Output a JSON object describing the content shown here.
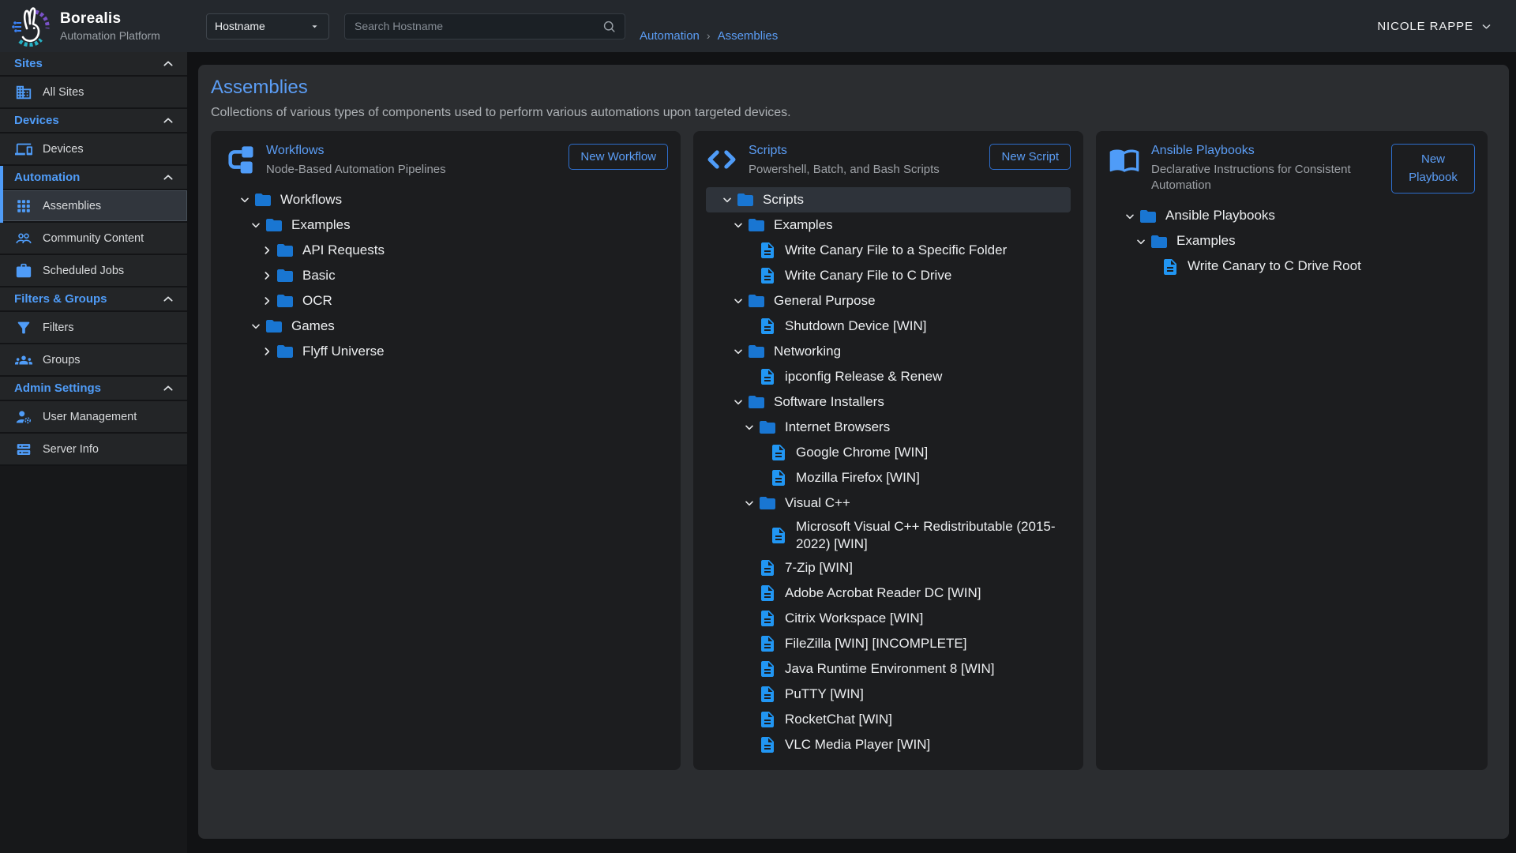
{
  "topbar": {
    "brand": {
      "name": "Borealis",
      "subtitle": "Automation Platform",
      "logo_icon": "rabbit-logo-icon"
    },
    "hostname_select": {
      "value": "Hostname",
      "icon": "chevron-down-icon"
    },
    "search": {
      "placeholder": "Search Hostname",
      "icon": "search-icon"
    },
    "breadcrumb": {
      "items": [
        {
          "label": "Automation"
        },
        {
          "label": "Assemblies"
        }
      ],
      "separator": "›"
    },
    "user": {
      "name": "NICOLE RAPPE",
      "icon": "chevron-down-icon"
    }
  },
  "sidebar": {
    "sections": [
      {
        "label": "Sites",
        "active": false,
        "items": [
          {
            "label": "All Sites",
            "icon": "building-icon",
            "selected": false
          }
        ]
      },
      {
        "label": "Devices",
        "active": false,
        "items": [
          {
            "label": "Devices",
            "icon": "devices-icon",
            "selected": false
          }
        ]
      },
      {
        "label": "Automation",
        "active": true,
        "items": [
          {
            "label": "Assemblies",
            "icon": "grid-icon",
            "selected": true
          },
          {
            "label": "Community Content",
            "icon": "people-icon",
            "selected": false
          },
          {
            "label": "Scheduled Jobs",
            "icon": "briefcase-icon",
            "selected": false
          }
        ]
      },
      {
        "label": "Filters & Groups",
        "active": false,
        "items": [
          {
            "label": "Filters",
            "icon": "filter-icon",
            "selected": false
          },
          {
            "label": "Groups",
            "icon": "groups-icon",
            "selected": false
          }
        ]
      },
      {
        "label": "Admin Settings",
        "active": false,
        "items": [
          {
            "label": "User Management",
            "icon": "user-gear-icon",
            "selected": false
          },
          {
            "label": "Server Info",
            "icon": "server-icon",
            "selected": false
          }
        ]
      }
    ]
  },
  "page": {
    "title": "Assemblies",
    "description": "Collections of various types of components used to perform various automations upon targeted devices."
  },
  "cards": [
    {
      "title": "Workflows",
      "subtitle": "Node-Based Automation Pipelines",
      "button": "New Workflow",
      "icon": "workflow-icon",
      "tree": [
        {
          "level": 0,
          "type": "folder",
          "expanded": true,
          "selected": false,
          "label": "Workflows"
        },
        {
          "level": 1,
          "type": "folder",
          "expanded": true,
          "selected": false,
          "label": "Examples"
        },
        {
          "level": 2,
          "type": "folder",
          "expanded": false,
          "selected": false,
          "label": "API Requests"
        },
        {
          "level": 2,
          "type": "folder",
          "expanded": false,
          "selected": false,
          "label": "Basic"
        },
        {
          "level": 2,
          "type": "folder",
          "expanded": false,
          "selected": false,
          "label": "OCR"
        },
        {
          "level": 1,
          "type": "folder",
          "expanded": true,
          "selected": false,
          "label": "Games"
        },
        {
          "level": 2,
          "type": "folder",
          "expanded": false,
          "selected": false,
          "label": "Flyff Universe"
        }
      ]
    },
    {
      "title": "Scripts",
      "subtitle": "Powershell, Batch, and Bash Scripts",
      "button": "New Script",
      "icon": "code-icon",
      "tree": [
        {
          "level": 0,
          "type": "folder",
          "expanded": true,
          "selected": true,
          "label": "Scripts"
        },
        {
          "level": 1,
          "type": "folder",
          "expanded": true,
          "selected": false,
          "label": "Examples"
        },
        {
          "level": 2,
          "type": "file",
          "selected": false,
          "label": "Write Canary File to a Specific Folder"
        },
        {
          "level": 2,
          "type": "file",
          "selected": false,
          "label": "Write Canary File to C Drive"
        },
        {
          "level": 1,
          "type": "folder",
          "expanded": true,
          "selected": false,
          "label": "General Purpose"
        },
        {
          "level": 2,
          "type": "file",
          "selected": false,
          "label": "Shutdown Device [WIN]"
        },
        {
          "level": 1,
          "type": "folder",
          "expanded": true,
          "selected": false,
          "label": "Networking"
        },
        {
          "level": 2,
          "type": "file",
          "selected": false,
          "label": "ipconfig Release & Renew"
        },
        {
          "level": 1,
          "type": "folder",
          "expanded": true,
          "selected": false,
          "label": "Software Installers"
        },
        {
          "level": 2,
          "type": "folder",
          "expanded": true,
          "selected": false,
          "label": "Internet Browsers"
        },
        {
          "level": 3,
          "type": "file",
          "selected": false,
          "label": "Google Chrome [WIN]"
        },
        {
          "level": 3,
          "type": "file",
          "selected": false,
          "label": "Mozilla Firefox [WIN]"
        },
        {
          "level": 2,
          "type": "folder",
          "expanded": true,
          "selected": false,
          "label": "Visual C++"
        },
        {
          "level": 3,
          "type": "file",
          "selected": false,
          "label": "Microsoft Visual C++ Redistributable (2015-2022) [WIN]"
        },
        {
          "level": 2,
          "type": "file",
          "selected": false,
          "label": "7-Zip [WIN]"
        },
        {
          "level": 2,
          "type": "file",
          "selected": false,
          "label": "Adobe Acrobat Reader DC [WIN]"
        },
        {
          "level": 2,
          "type": "file",
          "selected": false,
          "label": "Citrix Workspace [WIN]"
        },
        {
          "level": 2,
          "type": "file",
          "selected": false,
          "label": "FileZilla [WIN] [INCOMPLETE]"
        },
        {
          "level": 2,
          "type": "file",
          "selected": false,
          "label": "Java Runtime Environment 8 [WIN]"
        },
        {
          "level": 2,
          "type": "file",
          "selected": false,
          "label": "PuTTY [WIN]"
        },
        {
          "level": 2,
          "type": "file",
          "selected": false,
          "label": "RocketChat [WIN]"
        },
        {
          "level": 2,
          "type": "file",
          "selected": false,
          "label": "VLC Media Player [WIN]"
        }
      ]
    },
    {
      "title": "Ansible Playbooks",
      "subtitle": "Declarative Instructions for Consistent Automation",
      "button": "New Playbook",
      "icon": "book-icon",
      "tree": [
        {
          "level": 0,
          "type": "folder",
          "expanded": true,
          "selected": false,
          "label": "Ansible Playbooks"
        },
        {
          "level": 1,
          "type": "folder",
          "expanded": true,
          "selected": false,
          "label": "Examples"
        },
        {
          "level": 2,
          "type": "file",
          "selected": false,
          "label": "Write Canary to C Drive Root"
        }
      ]
    }
  ],
  "colors": {
    "accent_blue": "#4f9cf8",
    "link_blue": "#5b9df5",
    "folder_blue": "#1976d2",
    "file_blue": "#2196f3",
    "topbar_bg": "#24282d",
    "panel_bg": "#2b2d30",
    "card_bg": "#1c1d1f",
    "selected_row_bg": "#2e333a"
  }
}
